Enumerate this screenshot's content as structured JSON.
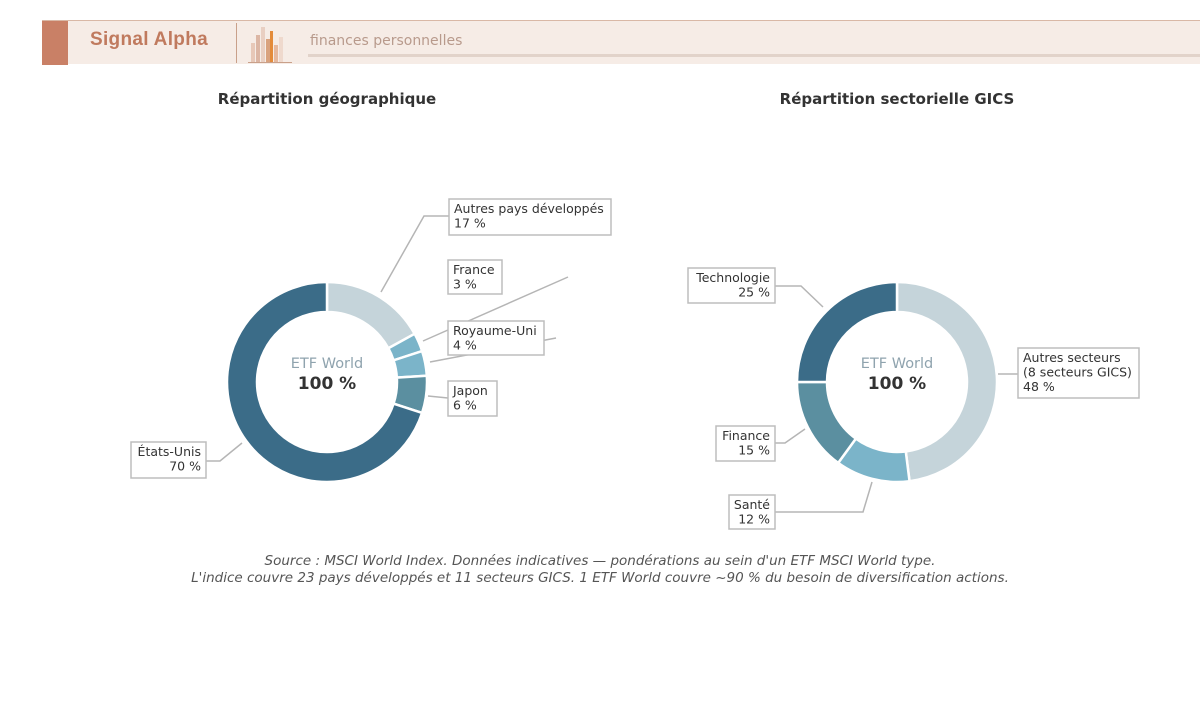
{
  "header": {
    "brand": "Signal Alpha",
    "tagline": "finances personnelles",
    "colors": {
      "accent": "#c98066",
      "background": "#f6ece6"
    }
  },
  "chart_data": [
    {
      "type": "pie",
      "title": "Répartition géographique",
      "center_label": "ETF World",
      "center_value": "100 %",
      "slices": [
        {
          "label": "Autres pays développés",
          "value": 17,
          "value_label": "17 %",
          "color": "#c5d4da"
        },
        {
          "label": "France",
          "value": 3,
          "value_label": "3 %",
          "color": "#7bb4c9"
        },
        {
          "label": "Royaume-Uni",
          "value": 4,
          "value_label": "4 %",
          "color": "#7bb4c9"
        },
        {
          "label": "Japon",
          "value": 6,
          "value_label": "6 %",
          "color": "#5b8fa0"
        },
        {
          "label": "États-Unis",
          "value": 70,
          "value_label": "70 %",
          "color": "#3b6c88"
        }
      ]
    },
    {
      "type": "pie",
      "title": "Répartition sectorielle GICS",
      "center_label": "ETF World",
      "center_value": "100 %",
      "slices": [
        {
          "label": "Autres secteurs\n(8 secteurs GICS)",
          "value": 48,
          "value_label": "48 %",
          "color": "#c5d4da"
        },
        {
          "label": "Santé",
          "value": 12,
          "value_label": "12 %",
          "color": "#7bb4c9"
        },
        {
          "label": "Finance",
          "value": 15,
          "value_label": "15 %",
          "color": "#5b8fa0"
        },
        {
          "label": "Technologie",
          "value": 25,
          "value_label": "25 %",
          "color": "#3b6c88"
        }
      ]
    }
  ],
  "source": {
    "line1": "Source : MSCI World Index. Données indicatives — pondérations au sein d'un ETF MSCI World type.",
    "line2": "L'indice couvre 23 pays développés et 11 secteurs GICS. 1 ETF World couvre ~90 % du besoin de diversification actions."
  }
}
